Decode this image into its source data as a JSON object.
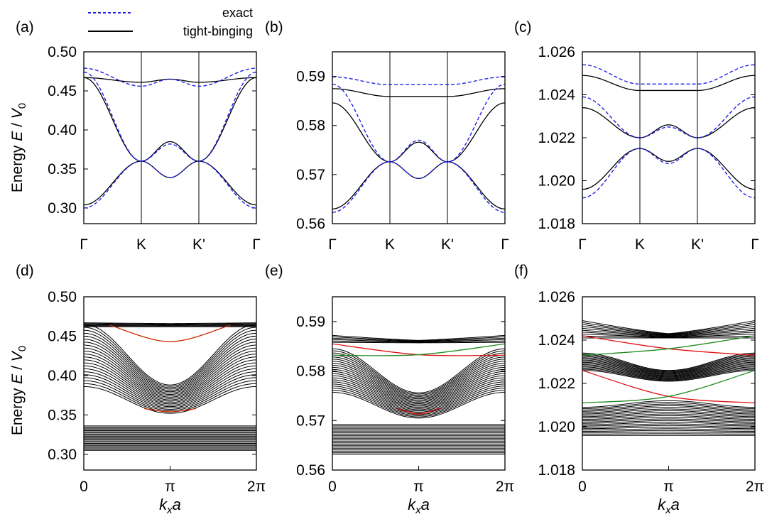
{
  "legend": {
    "exact": "exact",
    "tight_binding": "tight-binging"
  },
  "colors": {
    "exact": "#1f1fe6",
    "tight_binding": "#000000",
    "upper_edge_panel_d": "#cc2a00",
    "lower_edge_panel_d": "#2e8b1a",
    "edge_red": "#e01010",
    "edge_green": "#1f8a1f",
    "ribbon": "#000000"
  },
  "y_axis_label": {
    "prefix": "Energy ",
    "E": "E",
    "slash": " / ",
    "V": "V",
    "sub": "0"
  },
  "x_axis_label": {
    "k": "k",
    "sub": "x",
    "a": "a"
  },
  "chart_data": [
    {
      "id": "a",
      "label": "(a)",
      "type": "line",
      "x_ticks": [
        "Γ",
        "K",
        "K'",
        "Γ"
      ],
      "ylim": [
        0.28,
        0.5
      ],
      "y_ticks": [
        "0.30",
        "0.35",
        "0.40",
        "0.45",
        "0.50"
      ],
      "y_tick_values": [
        0.3,
        0.35,
        0.4,
        0.45,
        0.5
      ],
      "path_x": [
        0,
        1,
        1.5,
        2,
        3
      ],
      "series": [
        {
          "name": "tight-binging band 1",
          "y": [
            0.304,
            0.36,
            0.339,
            0.36,
            0.304
          ]
        },
        {
          "name": "tight-binging band 2",
          "y": [
            0.467,
            0.36,
            0.385,
            0.36,
            0.467
          ]
        },
        {
          "name": "tight-binging band 3",
          "y": [
            0.467,
            0.461,
            0.465,
            0.461,
            0.467
          ]
        },
        {
          "name": "exact band 1",
          "y": [
            0.3,
            0.36,
            0.339,
            0.36,
            0.3
          ]
        },
        {
          "name": "exact band 2",
          "y": [
            0.474,
            0.36,
            0.382,
            0.36,
            0.474
          ]
        },
        {
          "name": "exact band 3",
          "y": [
            0.479,
            0.456,
            0.465,
            0.456,
            0.479
          ]
        }
      ]
    },
    {
      "id": "b",
      "label": "(b)",
      "type": "line",
      "x_ticks": [
        "Γ",
        "K",
        "K'",
        "Γ"
      ],
      "ylim": [
        0.56,
        0.595
      ],
      "y_ticks": [
        "0.56",
        "0.57",
        "0.58",
        "0.59"
      ],
      "y_tick_values": [
        0.56,
        0.57,
        0.58,
        0.59
      ],
      "path_x": [
        0,
        1,
        1.5,
        2,
        3
      ],
      "series": [
        {
          "name": "tight-binging band 1",
          "y": [
            0.563,
            0.5726,
            0.5692,
            0.5726,
            0.563
          ]
        },
        {
          "name": "tight-binging band 2",
          "y": [
            0.5846,
            0.5726,
            0.5766,
            0.5726,
            0.5846
          ]
        },
        {
          "name": "tight-binging band 3",
          "y": [
            0.5875,
            0.5859,
            0.5859,
            0.5859,
            0.5875
          ]
        },
        {
          "name": "exact band 1",
          "y": [
            0.5623,
            0.5726,
            0.5692,
            0.5726,
            0.5623
          ]
        },
        {
          "name": "exact band 2",
          "y": [
            0.5884,
            0.5726,
            0.577,
            0.5726,
            0.5884
          ]
        },
        {
          "name": "exact band 3",
          "y": [
            0.5899,
            0.5883,
            0.5883,
            0.5883,
            0.5899
          ]
        }
      ]
    },
    {
      "id": "c",
      "label": "(c)",
      "type": "line",
      "x_ticks": [
        "Γ",
        "K",
        "K'",
        "Γ"
      ],
      "ylim": [
        1.018,
        1.026
      ],
      "y_ticks": [
        "1.018",
        "1.020",
        "1.022",
        "1.024",
        "1.026"
      ],
      "y_tick_values": [
        1.018,
        1.02,
        1.022,
        1.024,
        1.026
      ],
      "path_x": [
        0,
        1,
        1.5,
        2,
        3
      ],
      "series": [
        {
          "name": "tight-binging band 1",
          "y": [
            1.0196,
            1.0215,
            1.0209,
            1.0215,
            1.0196
          ]
        },
        {
          "name": "tight-binging band 2",
          "y": [
            1.0234,
            1.022,
            1.0226,
            1.022,
            1.0234
          ]
        },
        {
          "name": "tight-binging band 3",
          "y": [
            1.0249,
            1.0242,
            1.0242,
            1.0242,
            1.0249
          ]
        },
        {
          "name": "exact band 1",
          "y": [
            1.0192,
            1.0215,
            1.0208,
            1.0215,
            1.0192
          ]
        },
        {
          "name": "exact band 2",
          "y": [
            1.0239,
            1.022,
            1.0225,
            1.022,
            1.0239
          ]
        },
        {
          "name": "exact band 3",
          "y": [
            1.0254,
            1.0245,
            1.0245,
            1.0245,
            1.0254
          ]
        }
      ]
    },
    {
      "id": "d",
      "label": "(d)",
      "type": "line",
      "x_ticks": [
        "0",
        "π",
        "2π"
      ],
      "xlim": [
        0,
        2
      ],
      "ylim": [
        0.28,
        0.5
      ],
      "y_ticks": [
        "0.30",
        "0.35",
        "0.40",
        "0.45",
        "0.50"
      ],
      "y_tick_values": [
        0.3,
        0.35,
        0.4,
        0.45,
        0.5
      ],
      "ribbon": {
        "groups": [
          {
            "lines": 20,
            "edge": 0.305,
            "top": 0.336,
            "center_bottom": 0.305,
            "center_top": 0.336,
            "node": 0.339
          },
          {
            "lines": 22,
            "edge_bottom": 0.385,
            "edge_top": 0.465,
            "center_bottom": 0.352,
            "center_top": 0.39,
            "node": 0.39
          },
          {
            "lines": 6,
            "edge_bottom": 0.462,
            "edge_top": 0.467,
            "center_bottom": 0.462,
            "center_top": 0.465
          }
        ]
      },
      "edge_states": [
        {
          "color": "upper_edge_panel_d",
          "x": [
            0.3,
            1,
            1.7
          ],
          "y": [
            0.464,
            0.443,
            0.464
          ]
        },
        {
          "color": "upper_edge_panel_d",
          "x": [
            0.7,
            1,
            1.3
          ],
          "y": [
            0.358,
            0.354,
            0.358
          ]
        }
      ]
    },
    {
      "id": "e",
      "label": "(e)",
      "type": "line",
      "x_ticks": [
        "0",
        "π",
        "2π"
      ],
      "xlim": [
        0,
        2
      ],
      "ylim": [
        0.56,
        0.595
      ],
      "y_ticks": [
        "0.56",
        "0.57",
        "0.58",
        "0.59"
      ],
      "y_tick_values": [
        0.56,
        0.57,
        0.58,
        0.59
      ],
      "edge_states": [
        {
          "color": "edge_red",
          "x": [
            0,
            1,
            2
          ],
          "y": [
            0.5855,
            0.5833,
            0.5832
          ]
        },
        {
          "color": "edge_green",
          "x": [
            0,
            1,
            2
          ],
          "y": [
            0.5832,
            0.5833,
            0.5855
          ]
        },
        {
          "color": "edge_red",
          "x": [
            0.75,
            1,
            1.25
          ],
          "y": [
            0.5725,
            0.5713,
            0.5725
          ]
        }
      ]
    },
    {
      "id": "f",
      "label": "(f)",
      "type": "line",
      "x_ticks": [
        "0",
        "π",
        "2π"
      ],
      "xlim": [
        0,
        2
      ],
      "ylim": [
        1.018,
        1.026
      ],
      "y_ticks": [
        "1.018",
        "1.020",
        "1.022",
        "1.024",
        "1.026"
      ],
      "y_tick_values": [
        1.018,
        1.02,
        1.022,
        1.024,
        1.026
      ],
      "edge_states": [
        {
          "color": "edge_red",
          "x": [
            0,
            1,
            2
          ],
          "y": [
            1.0242,
            1.0236,
            1.0233
          ]
        },
        {
          "color": "edge_green",
          "x": [
            0,
            1,
            2
          ],
          "y": [
            1.0233,
            1.0236,
            1.0242
          ]
        },
        {
          "color": "edge_red",
          "x": [
            0,
            1,
            2
          ],
          "y": [
            1.0226,
            1.0214,
            1.0211
          ]
        },
        {
          "color": "edge_green",
          "x": [
            0,
            1,
            2
          ],
          "y": [
            1.0211,
            1.0214,
            1.0226
          ]
        }
      ]
    }
  ]
}
